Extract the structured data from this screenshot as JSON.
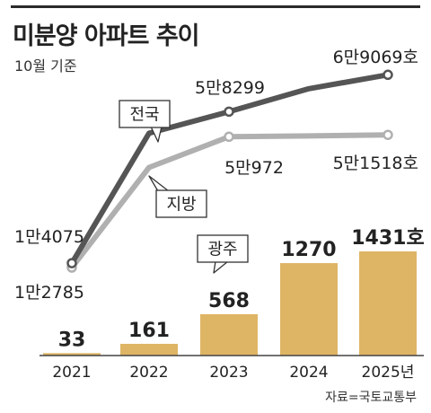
{
  "header": {
    "title": "미분양 아파트 추이",
    "subtitle": "10월 기준",
    "source": "자료=국토교통부"
  },
  "chart_data": {
    "type": "bar+line",
    "title": "미분양 아파트 추이",
    "subtitle": "10월 기준",
    "categories": [
      "2021",
      "2022",
      "2023",
      "2024",
      "2025년"
    ],
    "bars": {
      "name": "광주",
      "values": [
        33,
        161,
        568,
        1270,
        1431
      ],
      "labels": [
        "33",
        "161",
        "568",
        "1270",
        "1431호"
      ],
      "color": "#deb565"
    },
    "series": [
      {
        "name": "전국",
        "values": [
          14075,
          52000,
          58299,
          65000,
          69069
        ],
        "point_labels": [
          "1만4075",
          "",
          "5만8299",
          "",
          "6만9069호"
        ],
        "color": "#555555"
      },
      {
        "name": "지방",
        "values": [
          12785,
          42000,
          50972,
          51200,
          51518
        ],
        "point_labels": [
          "1만2785",
          "",
          "5만972",
          "",
          "5만1518호"
        ],
        "color": "#b0b0b0"
      }
    ],
    "source": "자료=국토교통부"
  }
}
